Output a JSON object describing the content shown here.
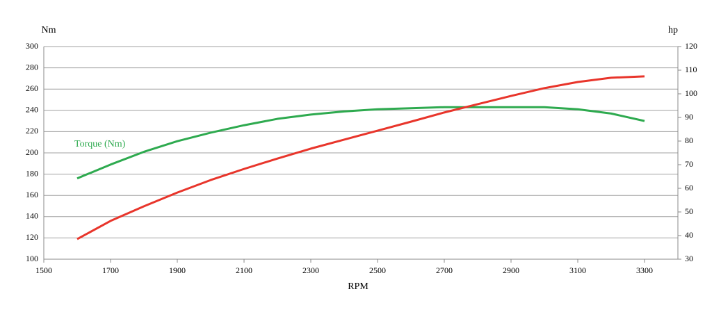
{
  "chart_data": {
    "type": "line",
    "x_label": "RPM",
    "y_label": "Nm",
    "y2_label": "hp",
    "x": [
      1600,
      1700,
      1800,
      1900,
      2000,
      2100,
      2200,
      2300,
      2400,
      2500,
      2600,
      2700,
      2800,
      2900,
      3000,
      3100,
      3200,
      3300
    ],
    "series": [
      {
        "name": "Torque (Nm)",
        "color": "#2eaa4f",
        "values": [
          176,
          189,
          201,
          211,
          219,
          226,
          232,
          236,
          239,
          241,
          242,
          243,
          243,
          243,
          243,
          241,
          237,
          230
        ]
      },
      {
        "color": "#e8352b",
        "axis": "y2",
        "values": [
          38.5,
          46.2,
          52.4,
          58.2,
          63.5,
          68.2,
          72.6,
          76.8,
          80.6,
          84.4,
          88.2,
          92.1,
          95.6,
          99.1,
          102.4,
          105,
          106.8,
          107.4
        ]
      }
    ],
    "xlim": [
      1500,
      3400
    ],
    "xticks": [
      1500,
      1700,
      1900,
      2100,
      2300,
      2500,
      2700,
      2900,
      3100,
      3300
    ],
    "ylim": [
      100,
      300
    ],
    "yticks": [
      100,
      120,
      140,
      160,
      180,
      200,
      220,
      240,
      260,
      280,
      300
    ],
    "y2lim": [
      30,
      120
    ],
    "y2ticks": [
      30,
      40,
      50,
      60,
      70,
      80,
      90,
      100,
      110,
      120
    ],
    "grid": true
  }
}
